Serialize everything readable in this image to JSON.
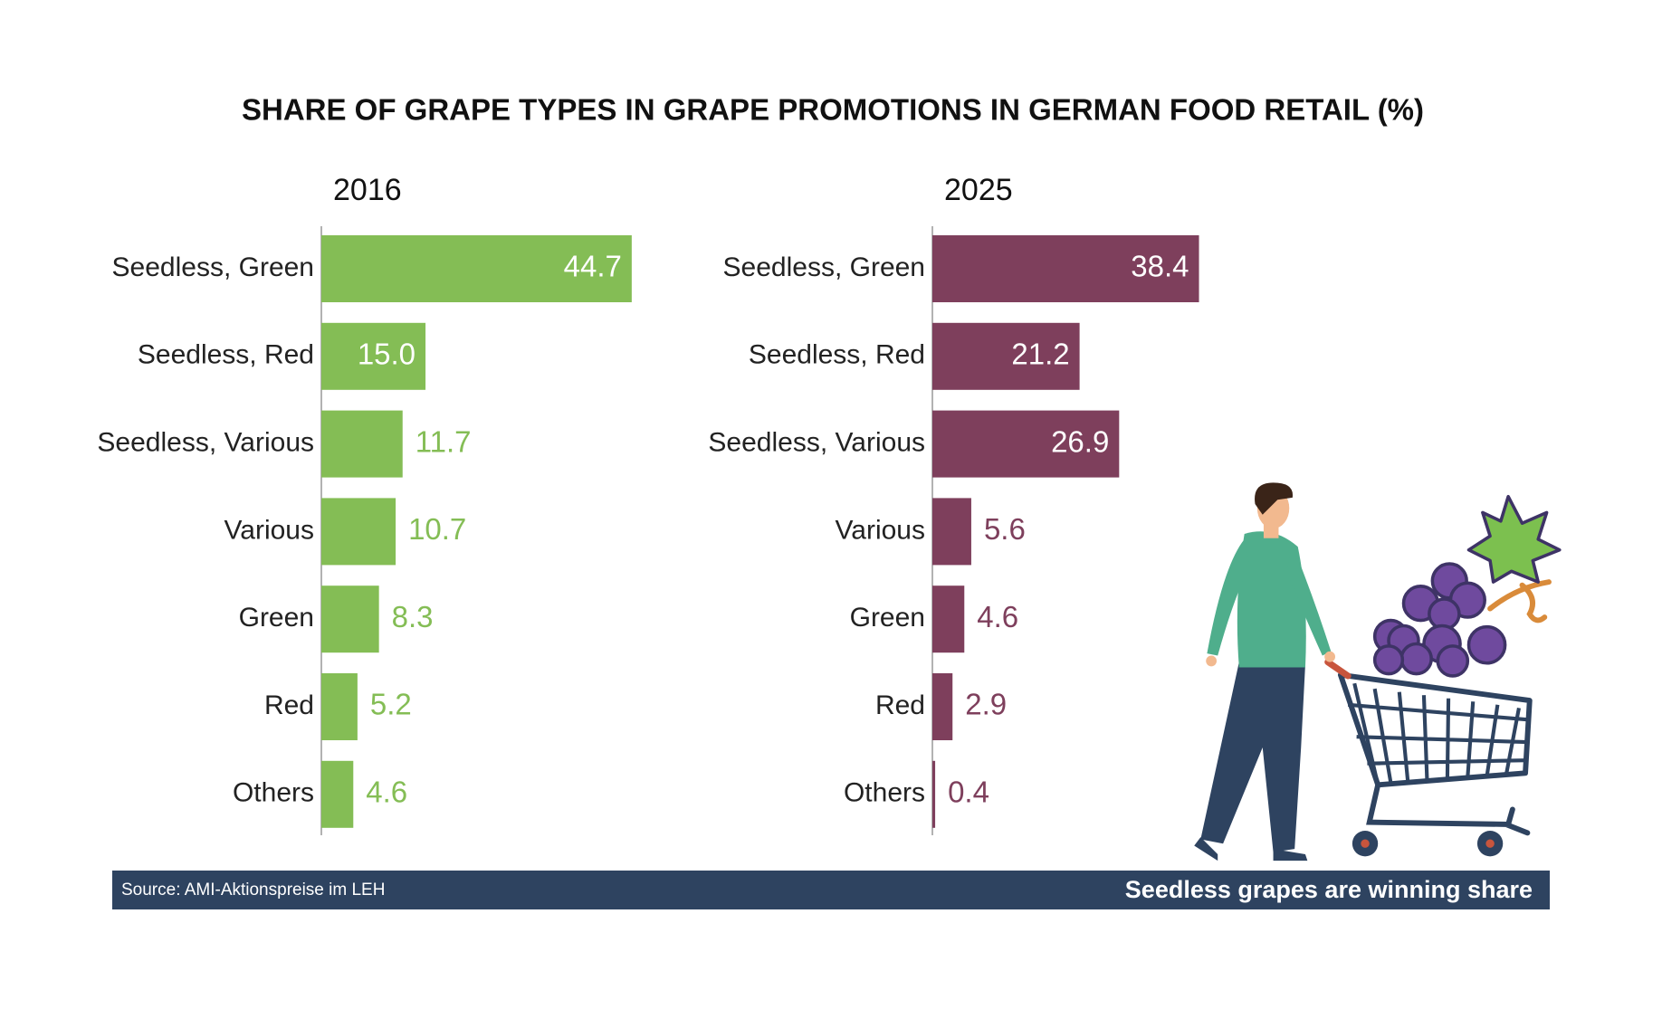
{
  "title": "SHARE OF GRAPE TYPES IN GRAPE PROMOTIONS IN GERMAN FOOD RETAIL (%)",
  "chart_data": [
    {
      "type": "bar",
      "title": "2016",
      "color": "#84bd55",
      "categories": [
        "Seedless, Green",
        "Seedless, Red",
        "Seedless, Various",
        "Various",
        "Green",
        "Red",
        "Others"
      ],
      "values": [
        44.7,
        15.0,
        11.7,
        10.7,
        8.3,
        5.2,
        4.6
      ],
      "value_labels": [
        "44.7",
        "15.0",
        "11.7",
        "10.7",
        "8.3",
        "5.2",
        "4.6"
      ]
    },
    {
      "type": "bar",
      "title": "2025",
      "color": "#7e3f5c",
      "categories": [
        "Seedless, Green",
        "Seedless, Red",
        "Seedless, Various",
        "Various",
        "Green",
        "Red",
        "Others"
      ],
      "values": [
        38.4,
        21.2,
        26.9,
        5.6,
        4.6,
        2.9,
        0.4
      ],
      "value_labels": [
        "38.4",
        "21.2",
        "26.9",
        "5.6",
        "4.6",
        "2.9",
        "0.4"
      ]
    }
  ],
  "footer": {
    "source": "Source: AMI-Aktionspreise im LEH",
    "tagline": "Seedless grapes are winning share"
  }
}
